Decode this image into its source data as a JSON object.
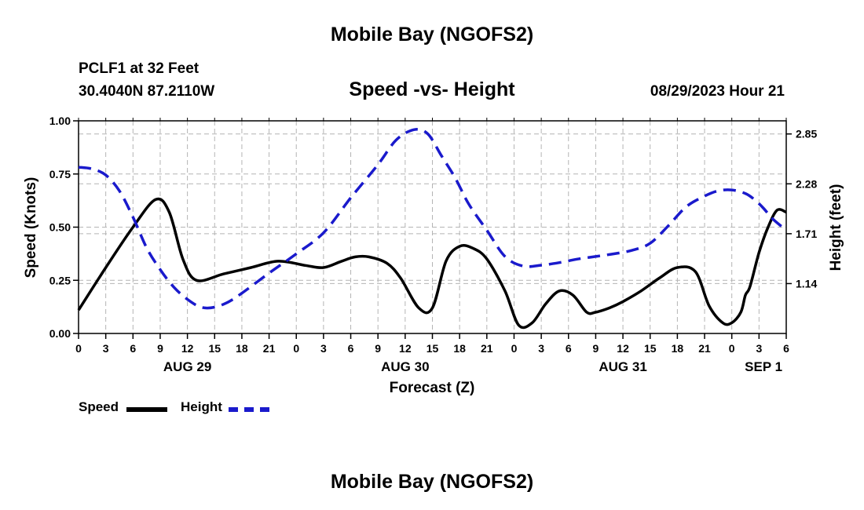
{
  "header": {
    "title": "Mobile Bay (NGOFS2)",
    "station": "PCLF1 at 32 Feet",
    "coordinates": "30.4040N  87.2110W",
    "subtitle": "Speed -vs- Height",
    "datetime": "08/29/2023 Hour 21"
  },
  "footer": {
    "title": "Mobile Bay (NGOFS2)"
  },
  "legend": {
    "speed_label": "Speed",
    "height_label": "Height"
  },
  "colors": {
    "speed": "#000000",
    "height": "#1a1acc",
    "grid": "#b4b4b4"
  },
  "chart_data": {
    "type": "line",
    "title": "Speed -vs- Height",
    "xlabel": "Forecast (Z)",
    "ylabel": "Speed (Knots)",
    "y2label": "Height (feet)",
    "xlim": [
      0,
      78
    ],
    "ylim": [
      0,
      1
    ],
    "y2lim": [
      0.57,
      3.0
    ],
    "x_ticks": [
      0,
      3,
      6,
      9,
      12,
      15,
      18,
      21,
      24,
      27,
      30,
      33,
      36,
      39,
      42,
      45,
      48,
      51,
      54,
      57,
      60,
      63,
      66,
      69,
      72,
      75,
      78
    ],
    "x_tick_labels": [
      "0",
      "3",
      "6",
      "9",
      "12",
      "15",
      "18",
      "21",
      "0",
      "3",
      "6",
      "9",
      "12",
      "15",
      "18",
      "21",
      "0",
      "3",
      "6",
      "9",
      "12",
      "15",
      "18",
      "21",
      "0",
      "3",
      "6"
    ],
    "date_labels": [
      {
        "x": 12,
        "label": "AUG 29"
      },
      {
        "x": 36,
        "label": "AUG 30"
      },
      {
        "x": 60,
        "label": "AUG 31"
      },
      {
        "x": 75.5,
        "label": "SEP 1"
      }
    ],
    "y_ticks": [
      0,
      0.25,
      0.5,
      0.75,
      1.0
    ],
    "y_tick_labels": [
      "0.00",
      "0.25",
      "0.50",
      "0.75",
      "1.00"
    ],
    "y2_ticks": [
      1.14,
      1.71,
      2.28,
      2.85
    ],
    "y2_tick_labels": [
      "1.14",
      "1.71",
      "2.28",
      "2.85"
    ],
    "grid": true,
    "legend_position": "bottom-left",
    "series": [
      {
        "name": "Speed",
        "axis": "left",
        "style": "solid",
        "x": [
          0,
          3,
          6,
          8.5,
          10,
          11.5,
          13,
          16,
          19,
          22,
          25,
          27,
          29,
          30.5,
          32,
          34,
          35.5,
          37.5,
          39,
          40.5,
          42,
          43.5,
          45,
          47,
          48.5,
          50,
          51.5,
          53,
          54.5,
          56,
          57,
          58.5,
          60,
          62,
          64,
          66,
          68,
          69.5,
          71,
          72,
          73,
          73.5,
          74,
          75,
          76,
          77,
          78
        ],
        "values": [
          0.11,
          0.31,
          0.5,
          0.63,
          0.57,
          0.35,
          0.25,
          0.28,
          0.31,
          0.34,
          0.32,
          0.31,
          0.34,
          0.36,
          0.36,
          0.33,
          0.26,
          0.12,
          0.12,
          0.34,
          0.41,
          0.4,
          0.35,
          0.2,
          0.04,
          0.05,
          0.14,
          0.2,
          0.18,
          0.1,
          0.1,
          0.12,
          0.15,
          0.2,
          0.26,
          0.31,
          0.29,
          0.13,
          0.05,
          0.05,
          0.1,
          0.18,
          0.22,
          0.38,
          0.5,
          0.58,
          0.57
        ]
      },
      {
        "name": "Height",
        "axis": "right",
        "style": "dashed",
        "x": [
          0,
          1.5,
          3,
          4.5,
          6,
          7.5,
          9,
          10.5,
          12,
          13.5,
          15,
          16.5,
          18,
          21,
          24,
          27,
          30,
          33,
          35,
          37,
          38.5,
          40,
          41.5,
          43,
          45,
          47,
          49,
          51,
          53,
          55,
          57,
          59,
          61,
          63,
          65,
          67,
          69,
          70.5,
          72,
          73.5,
          74.5,
          75.5,
          76.5,
          78
        ],
        "values": [
          2.47,
          2.45,
          2.38,
          2.2,
          1.9,
          1.55,
          1.3,
          1.1,
          0.96,
          0.87,
          0.87,
          0.93,
          1.03,
          1.26,
          1.48,
          1.72,
          2.12,
          2.5,
          2.78,
          2.9,
          2.85,
          2.6,
          2.35,
          2.05,
          1.75,
          1.45,
          1.34,
          1.35,
          1.38,
          1.42,
          1.45,
          1.48,
          1.52,
          1.6,
          1.8,
          2.02,
          2.14,
          2.2,
          2.21,
          2.17,
          2.1,
          2.0,
          1.88,
          1.75
        ]
      }
    ]
  }
}
